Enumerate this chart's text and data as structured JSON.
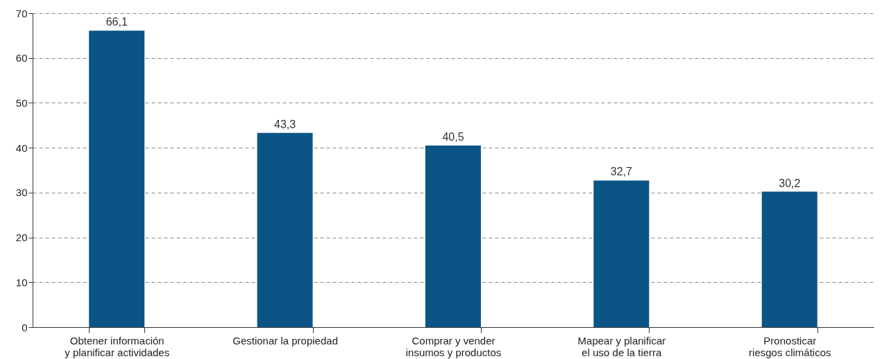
{
  "chart_data": {
    "type": "bar",
    "categories": [
      "Obtener información\ny planificar actividades",
      "Gestionar la propiedad",
      "Comprar y vender\ninsumos y productos",
      "Mapear y planificar\nel uso de la tierra",
      "Pronosticar\nriesgos climáticos"
    ],
    "values": [
      66.1,
      43.3,
      40.5,
      32.7,
      30.2
    ],
    "value_labels": [
      "66,1",
      "43,3",
      "40,5",
      "32,7",
      "30,2"
    ],
    "color": "#0a5585",
    "ylim": [
      0,
      70
    ],
    "yticks": [
      0,
      10,
      20,
      30,
      40,
      50,
      60,
      70
    ],
    "grid": "y"
  }
}
